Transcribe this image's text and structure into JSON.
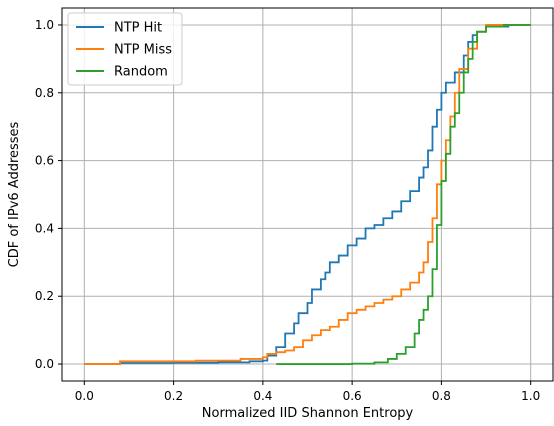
{
  "chart_data": {
    "type": "line",
    "subtype": "step-cdf",
    "title": "",
    "xlabel": "Normalized IID Shannon Entropy",
    "ylabel": "CDF of IPv6 Addresses",
    "xlim": [
      -0.05,
      1.05
    ],
    "ylim": [
      -0.05,
      1.05
    ],
    "xticks": [
      "0.0",
      "0.2",
      "0.4",
      "0.6",
      "0.8",
      "1.0"
    ],
    "yticks": [
      "0.0",
      "0.2",
      "0.4",
      "0.6",
      "0.8",
      "1.0"
    ],
    "grid": true,
    "legend": "top-left",
    "series": [
      {
        "name": "NTP Hit",
        "color": "#1f77b4",
        "points": [
          [
            0.0,
            0.0
          ],
          [
            0.08,
            0.003
          ],
          [
            0.2,
            0.004
          ],
          [
            0.3,
            0.005
          ],
          [
            0.37,
            0.008
          ],
          [
            0.4,
            0.01
          ],
          [
            0.41,
            0.025
          ],
          [
            0.43,
            0.05
          ],
          [
            0.45,
            0.09
          ],
          [
            0.47,
            0.12
          ],
          [
            0.48,
            0.15
          ],
          [
            0.5,
            0.18
          ],
          [
            0.51,
            0.22
          ],
          [
            0.53,
            0.25
          ],
          [
            0.54,
            0.27
          ],
          [
            0.55,
            0.3
          ],
          [
            0.57,
            0.32
          ],
          [
            0.59,
            0.35
          ],
          [
            0.61,
            0.37
          ],
          [
            0.63,
            0.4
          ],
          [
            0.65,
            0.41
          ],
          [
            0.67,
            0.43
          ],
          [
            0.69,
            0.45
          ],
          [
            0.71,
            0.48
          ],
          [
            0.73,
            0.51
          ],
          [
            0.75,
            0.55
          ],
          [
            0.76,
            0.58
          ],
          [
            0.77,
            0.63
          ],
          [
            0.78,
            0.7
          ],
          [
            0.79,
            0.75
          ],
          [
            0.8,
            0.8
          ],
          [
            0.81,
            0.83
          ],
          [
            0.83,
            0.86
          ],
          [
            0.85,
            0.91
          ],
          [
            0.86,
            0.95
          ],
          [
            0.87,
            0.97
          ],
          [
            0.88,
            0.98
          ],
          [
            0.9,
            0.995
          ],
          [
            0.95,
            1.0
          ],
          [
            1.0,
            1.0
          ]
        ]
      },
      {
        "name": "NTP Miss",
        "color": "#ff7f0e",
        "points": [
          [
            0.0,
            0.0
          ],
          [
            0.08,
            0.008
          ],
          [
            0.25,
            0.01
          ],
          [
            0.35,
            0.015
          ],
          [
            0.4,
            0.02
          ],
          [
            0.41,
            0.03
          ],
          [
            0.43,
            0.035
          ],
          [
            0.45,
            0.04
          ],
          [
            0.47,
            0.05
          ],
          [
            0.49,
            0.07
          ],
          [
            0.51,
            0.085
          ],
          [
            0.53,
            0.1
          ],
          [
            0.55,
            0.11
          ],
          [
            0.57,
            0.13
          ],
          [
            0.59,
            0.15
          ],
          [
            0.61,
            0.16
          ],
          [
            0.63,
            0.17
          ],
          [
            0.65,
            0.18
          ],
          [
            0.67,
            0.19
          ],
          [
            0.69,
            0.2
          ],
          [
            0.71,
            0.22
          ],
          [
            0.73,
            0.24
          ],
          [
            0.75,
            0.27
          ],
          [
            0.76,
            0.3
          ],
          [
            0.77,
            0.36
          ],
          [
            0.78,
            0.43
          ],
          [
            0.79,
            0.53
          ],
          [
            0.8,
            0.6
          ],
          [
            0.81,
            0.66
          ],
          [
            0.82,
            0.73
          ],
          [
            0.83,
            0.8
          ],
          [
            0.84,
            0.87
          ],
          [
            0.86,
            0.93
          ],
          [
            0.88,
            0.98
          ],
          [
            0.9,
            1.0
          ],
          [
            1.0,
            1.0
          ]
        ]
      },
      {
        "name": "Random",
        "color": "#2ca02c",
        "points": [
          [
            0.43,
            0.0
          ],
          [
            0.6,
            0.001
          ],
          [
            0.65,
            0.005
          ],
          [
            0.68,
            0.015
          ],
          [
            0.7,
            0.03
          ],
          [
            0.72,
            0.05
          ],
          [
            0.74,
            0.09
          ],
          [
            0.75,
            0.13
          ],
          [
            0.76,
            0.16
          ],
          [
            0.77,
            0.2
          ],
          [
            0.78,
            0.28
          ],
          [
            0.79,
            0.41
          ],
          [
            0.8,
            0.54
          ],
          [
            0.81,
            0.62
          ],
          [
            0.82,
            0.7
          ],
          [
            0.83,
            0.74
          ],
          [
            0.84,
            0.8
          ],
          [
            0.85,
            0.86
          ],
          [
            0.86,
            0.9
          ],
          [
            0.87,
            0.95
          ],
          [
            0.88,
            0.98
          ],
          [
            0.9,
            0.995
          ],
          [
            0.94,
            1.0
          ],
          [
            1.0,
            1.0
          ]
        ]
      }
    ]
  }
}
